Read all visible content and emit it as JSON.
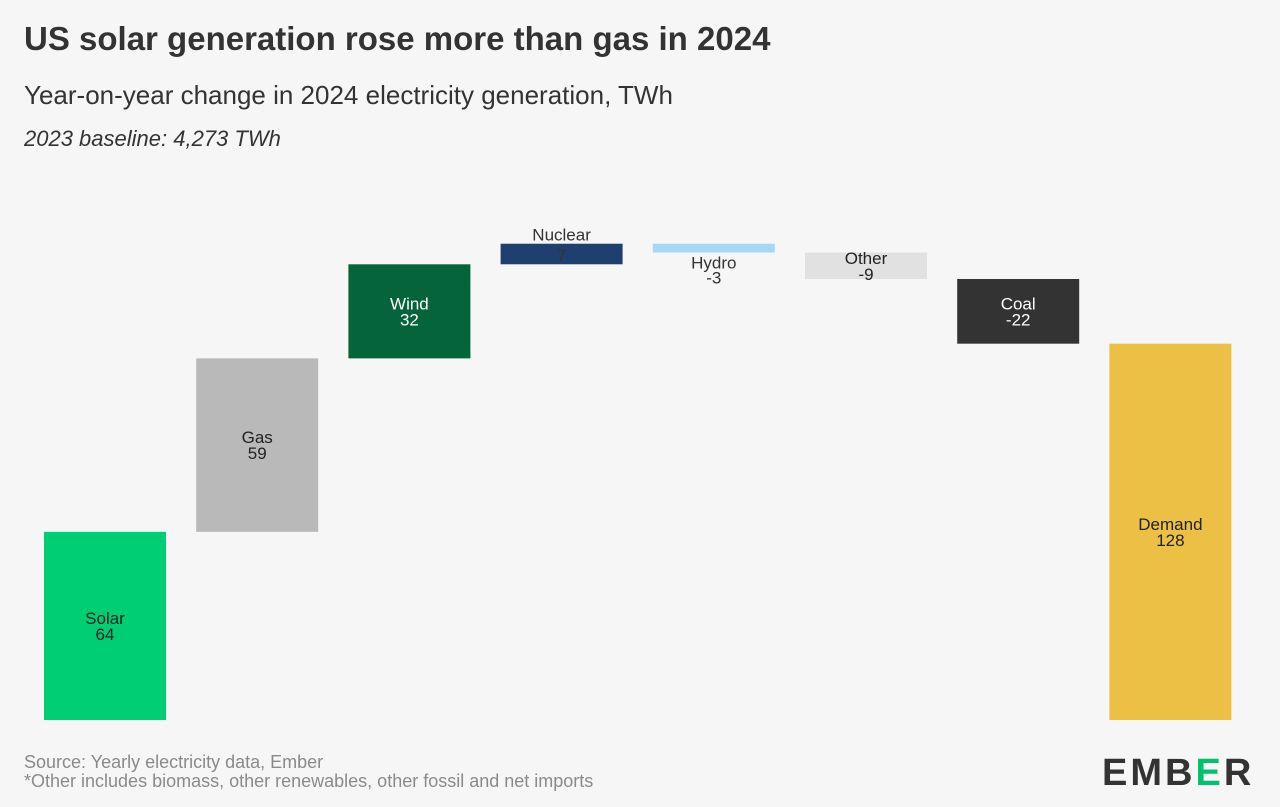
{
  "title": "US solar generation rose more than gas in 2024",
  "subtitle": "Year-on-year change in 2024 electricity generation, TWh",
  "baseline_note": "2023 baseline: 4,273 TWh",
  "source": "Source: Yearly electricity data, Ember",
  "footnote": "*Other includes biomass, other renewables, other fossil and net imports",
  "logo": {
    "pre": "EMB",
    "e": "E",
    "post": "R"
  },
  "chart_data": {
    "type": "waterfall",
    "title": "US solar generation rose more than gas in 2024",
    "unit": "TWh",
    "categories": [
      "Solar",
      "Gas",
      "Wind",
      "Nuclear",
      "Hydro",
      "Other",
      "Coal",
      "Demand"
    ],
    "values": [
      64,
      59,
      32,
      7,
      -3,
      -9,
      -22,
      128
    ],
    "value_labels": [
      "64",
      "59",
      "32",
      "7",
      "-3",
      "-9",
      "-22",
      "128"
    ],
    "total_index": 7,
    "colors": [
      "#00ce74",
      "#b9b9b9",
      "#05643a",
      "#1f3f6e",
      "#a6d8f3",
      "#e1e1e1",
      "#333333",
      "#ecbf45"
    ],
    "label_colors": [
      "#222",
      "#222",
      "#fff",
      "#333",
      "#333",
      "#222",
      "#fff",
      "#222"
    ],
    "grid": false
  }
}
